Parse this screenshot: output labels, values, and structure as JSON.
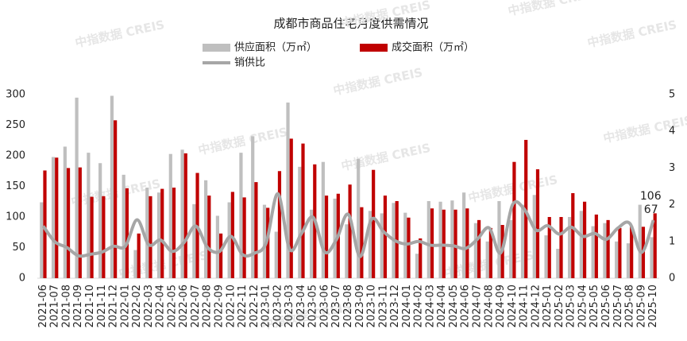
{
  "chart_data": {
    "type": "bar_line",
    "title": "成都市商品住宅月度供需情况",
    "watermark": "中指数据 CREIS",
    "categories": [
      "2021-06",
      "2021-07",
      "2021-08",
      "2021-09",
      "2021-10",
      "2021-11",
      "2021-12",
      "2022-01",
      "2022-02",
      "2022-03",
      "2022-04",
      "2022-05",
      "2022-06",
      "2022-07",
      "2022-08",
      "2022-09",
      "2022-10",
      "2022-11",
      "2022-12",
      "2023-01",
      "2023-02",
      "2023-03",
      "2023-04",
      "2023-05",
      "2023-06",
      "2023-07",
      "2023-08",
      "2023-09",
      "2023-10",
      "2023-11",
      "2023-12",
      "2024-01",
      "2024-02",
      "2024-03",
      "2024-04",
      "2024-05",
      "2024-06",
      "2024-07",
      "2024-08",
      "2024-09",
      "2024-10",
      "2024-11",
      "2024-12",
      "2025-01",
      "2025-02",
      "2025-03",
      "2025-04",
      "2025-05",
      "2025-06",
      "2025-07",
      "2025-08",
      "2025-09",
      "2025-10"
    ],
    "series": [
      {
        "name": "供应面积（万㎡）",
        "color": "#bfbfbf",
        "kind": "bar",
        "values": [
          124,
          198,
          215,
          295,
          205,
          188,
          298,
          169,
          46,
          148,
          140,
          203,
          210,
          121,
          160,
          102,
          124,
          205,
          232,
          120,
          76,
          287,
          182,
          112,
          190,
          130,
          88,
          195,
          110,
          106,
          123,
          107,
          40,
          126,
          125,
          127,
          140,
          90,
          60,
          126,
          95,
          120,
          136,
          70,
          48,
          100,
          110,
          85,
          90,
          60,
          57,
          120,
          67
        ]
      },
      {
        "name": "成交面积（万㎡）",
        "color": "#c00000",
        "kind": "bar",
        "values": [
          176,
          197,
          180,
          181,
          133,
          134,
          258,
          147,
          73,
          134,
          146,
          148,
          204,
          172,
          135,
          73,
          141,
          132,
          157,
          115,
          175,
          228,
          220,
          186,
          135,
          138,
          153,
          116,
          177,
          135,
          126,
          99,
          65,
          114,
          112,
          112,
          114,
          95,
          82,
          87,
          190,
          226,
          178,
          100,
          100,
          139,
          125,
          104,
          95,
          82,
          85,
          84,
          106
        ]
      },
      {
        "name": "销供比",
        "color": "#a6a6a6",
        "kind": "line",
        "axis": "y2",
        "values": [
          1.42,
          0.99,
          0.84,
          0.61,
          0.65,
          0.71,
          0.87,
          0.87,
          1.59,
          0.91,
          1.04,
          0.73,
          0.97,
          1.42,
          0.84,
          0.72,
          1.14,
          0.64,
          0.68,
          0.96,
          2.3,
          0.79,
          1.21,
          1.66,
          0.71,
          1.06,
          1.74,
          0.59,
          1.61,
          1.27,
          1.02,
          0.93,
          1.0,
          0.9,
          0.9,
          0.88,
          0.81,
          1.06,
          1.37,
          0.69,
          2.0,
          1.88,
          1.31,
          1.43,
          1.2,
          1.39,
          1.14,
          1.22,
          1.06,
          1.37,
          1.49,
          0.7,
          1.58
        ]
      }
    ],
    "ylim": [
      0,
      300
    ],
    "yticks": [
      0,
      50,
      100,
      150,
      200,
      250,
      300
    ],
    "y2lim": [
      0,
      5
    ],
    "y2ticks": [
      0,
      1,
      2,
      3,
      4,
      5
    ],
    "legend": "top",
    "annotations": [
      {
        "label": "106",
        "series": 1,
        "index": 52
      },
      {
        "label": "67",
        "series": 0,
        "index": 52
      }
    ]
  }
}
